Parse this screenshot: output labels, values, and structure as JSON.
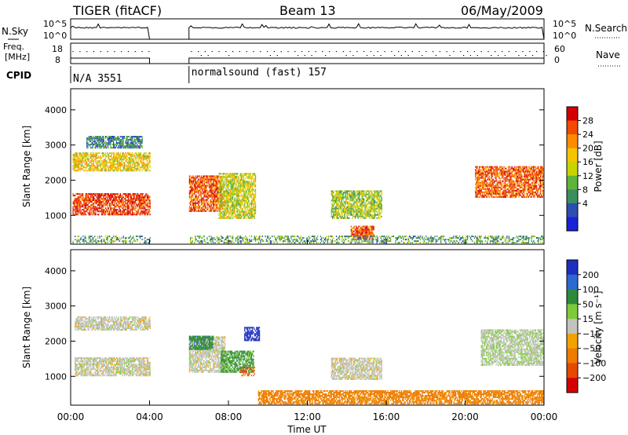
{
  "header": {
    "radar": "TIGER (fitACF)",
    "beam": "Beam 13",
    "date": "06/May/2009"
  },
  "aux": {
    "nsky_label": "N.Sky",
    "nsky_ticks": [
      "10^5",
      "10^0"
    ],
    "nsearch_label": "N.Search",
    "nsearch_ticks": [
      "10^5",
      "10^0"
    ],
    "freq_label_1": "Freq.",
    "freq_label_2": "[MHz]",
    "freq_ticks": [
      "18",
      "8"
    ],
    "nave_label": "Nave",
    "nave_ticks": [
      "60",
      "0"
    ],
    "cpid_label": "CPID",
    "cpid_segments": [
      {
        "text": "N/A 3551",
        "start_hour": 0,
        "end_hour": 4.0
      },
      {
        "text": "normalsound (fast) 157",
        "start_hour": 6.0,
        "end_hour": 24
      }
    ]
  },
  "panels": {
    "power": {
      "ylabel": "Slant Range [km]",
      "colorbar_label": "Power [dB]",
      "colorbar_ticks": [
        "28",
        "24",
        "20",
        "16",
        "12",
        "8",
        "4"
      ],
      "colors": [
        "#d40000",
        "#f24a00",
        "#ff8c00",
        "#f5c400",
        "#c8d400",
        "#5fb43a",
        "#3b8f5e",
        "#2c4fb0",
        "#1a22d8"
      ]
    },
    "velocity": {
      "ylabel": "Slant Range [km]",
      "colorbar_label": "Velocity [m s⁻¹]",
      "colorbar_ticks": [
        "200",
        "100",
        "50",
        "15",
        "−15",
        "−50",
        "−100",
        "−200"
      ],
      "colors": [
        "#1d2fbf",
        "#2a6ad0",
        "#2e8a3a",
        "#7ecb3a",
        "#c3c3bd",
        "#f2a200",
        "#ee7a00",
        "#e34a00",
        "#d40000"
      ]
    }
  },
  "x_axis": {
    "label": "Time UT",
    "ticks": [
      "00:00",
      "04:00",
      "08:00",
      "12:00",
      "16:00",
      "20:00",
      "00:00"
    ]
  },
  "chart_data": {
    "type": "heatmap",
    "title": "TIGER (fitACF) Beam 13 06/May/2009",
    "xlabel": "Time UT",
    "ylabel": "Slant Range [km]",
    "xlim_hours": [
      0,
      24
    ],
    "ylim_km": [
      180,
      4600
    ],
    "y_ticks": [
      1000,
      2000,
      3000,
      4000
    ],
    "data_gap_hours": [
      4.0,
      6.0
    ],
    "power_regions": [
      {
        "t0": 0.1,
        "t1": 4.0,
        "r0": 1000,
        "r1": 1600,
        "db": 28
      },
      {
        "t0": 0.1,
        "t1": 4.0,
        "r0": 2250,
        "r1": 2750,
        "db": 18
      },
      {
        "t0": 0.8,
        "t1": 3.6,
        "r0": 2900,
        "r1": 3250,
        "db": 8
      },
      {
        "t0": 6.0,
        "t1": 7.6,
        "r0": 1100,
        "r1": 2100,
        "db": 26
      },
      {
        "t0": 7.5,
        "t1": 9.4,
        "r0": 900,
        "r1": 2200,
        "db": 16
      },
      {
        "t0": 13.2,
        "t1": 15.8,
        "r0": 900,
        "r1": 1700,
        "db": 14
      },
      {
        "t0": 14.2,
        "t1": 15.4,
        "r0": 300,
        "r1": 700,
        "db": 26
      },
      {
        "t0": 20.5,
        "t1": 24.0,
        "r0": 1500,
        "r1": 2400,
        "db": 26
      },
      {
        "t0": 0.1,
        "t1": 24.0,
        "r0": 200,
        "r1": 420,
        "db": 10
      }
    ],
    "velocity_regions": [
      {
        "t0": 0.2,
        "t1": 4.0,
        "r0": 1000,
        "r1": 1500,
        "v": 0
      },
      {
        "t0": 0.2,
        "t1": 4.0,
        "r0": 2300,
        "r1": 2700,
        "v": 0
      },
      {
        "t0": 6.0,
        "t1": 7.8,
        "r0": 1100,
        "r1": 2100,
        "v": 0
      },
      {
        "t0": 6.0,
        "t1": 7.2,
        "r0": 1750,
        "r1": 2150,
        "v": 60
      },
      {
        "t0": 7.6,
        "t1": 9.3,
        "r0": 1100,
        "r1": 1700,
        "v": 40
      },
      {
        "t0": 8.6,
        "t1": 9.4,
        "r0": 1000,
        "r1": 1250,
        "v": -90
      },
      {
        "t0": 8.8,
        "t1": 9.6,
        "r0": 2000,
        "r1": 2400,
        "v": 200
      },
      {
        "t0": 13.2,
        "t1": 15.8,
        "r0": 900,
        "r1": 1500,
        "v": 0
      },
      {
        "t0": 20.8,
        "t1": 24.0,
        "r0": 1300,
        "r1": 2300,
        "v": 10
      },
      {
        "t0": 9.5,
        "t1": 24.0,
        "r0": 200,
        "r1": 600,
        "v": -45
      }
    ]
  }
}
